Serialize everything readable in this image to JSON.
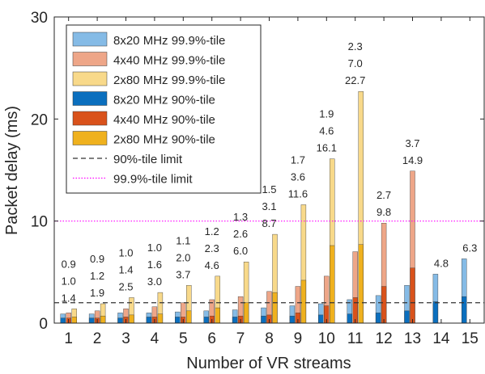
{
  "chart_data": {
    "type": "bar",
    "xlabel": "Number of VR streams",
    "ylabel": "Packet delay (ms)",
    "ylim": [
      0,
      30
    ],
    "yticks": [
      0,
      10,
      20,
      30
    ],
    "categories": [
      "1",
      "2",
      "3",
      "4",
      "5",
      "6",
      "7",
      "8",
      "9",
      "10",
      "11",
      "12",
      "13",
      "14",
      "15"
    ],
    "grid": false,
    "legend_position": "top-left",
    "series": [
      {
        "name": "8x20 MHz 99.9%-tile",
        "color": "#85bbe6",
        "group": 0,
        "layer": "p999",
        "values": [
          0.9,
          0.9,
          1.0,
          1.0,
          1.1,
          1.2,
          1.3,
          1.5,
          1.7,
          1.9,
          2.3,
          2.7,
          3.7,
          4.8,
          6.3
        ]
      },
      {
        "name": "4x40 MHz 99.9%-tile",
        "color": "#eea688",
        "group": 1,
        "layer": "p999",
        "values": [
          1.0,
          1.2,
          1.4,
          1.6,
          2.0,
          2.3,
          2.6,
          3.1,
          3.6,
          4.6,
          7.0,
          9.8,
          14.9,
          null,
          null
        ]
      },
      {
        "name": "2x80 MHz 99.9%-tile",
        "color": "#f8d98a",
        "group": 2,
        "layer": "p999",
        "values": [
          1.4,
          1.9,
          2.5,
          3.0,
          3.7,
          4.6,
          6.0,
          8.7,
          11.6,
          16.1,
          22.7,
          null,
          null,
          null,
          null
        ]
      },
      {
        "name": "8x20 MHz 90%-tile",
        "color": "#0b6fbe",
        "group": 0,
        "layer": "p90",
        "values": [
          0.5,
          0.5,
          0.5,
          0.6,
          0.6,
          0.6,
          0.6,
          0.7,
          0.7,
          0.8,
          0.9,
          1.0,
          1.2,
          2.1,
          2.6
        ]
      },
      {
        "name": "4x40 MHz 90%-tile",
        "color": "#d9521b",
        "group": 1,
        "layer": "p90",
        "values": [
          0.5,
          0.5,
          0.6,
          0.6,
          0.6,
          0.7,
          0.7,
          0.8,
          1.0,
          1.7,
          2.5,
          3.6,
          5.4,
          null,
          null
        ]
      },
      {
        "name": "2x80 MHz 90%-tile",
        "color": "#efb11e",
        "group": 2,
        "layer": "p90",
        "values": [
          0.6,
          0.7,
          0.8,
          0.9,
          1.2,
          1.5,
          2.0,
          3.0,
          4.2,
          7.6,
          7.7,
          null,
          null,
          null,
          null
        ]
      }
    ],
    "reference_lines": [
      {
        "name": "90%-tile limit",
        "value": 2,
        "color": "#333333",
        "style": "dashed"
      },
      {
        "name": "99.9%-tile limit",
        "value": 10,
        "color": "#ff00ff",
        "style": "dotted"
      }
    ],
    "data_labels_note": "labels shown above each bar group"
  }
}
